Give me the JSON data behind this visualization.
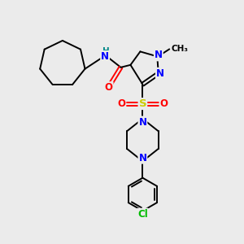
{
  "bg_color": "#ebebeb",
  "atom_colors": {
    "N": "#0000ff",
    "O": "#ff0000",
    "S": "#cccc00",
    "Cl": "#00bb00",
    "H": "#008888",
    "C": "#000000"
  },
  "bond_color": "#000000",
  "bond_width": 1.4,
  "figsize": [
    3.0,
    3.0
  ],
  "dpi": 100,
  "xlim": [
    0,
    10
  ],
  "ylim": [
    0,
    10
  ]
}
